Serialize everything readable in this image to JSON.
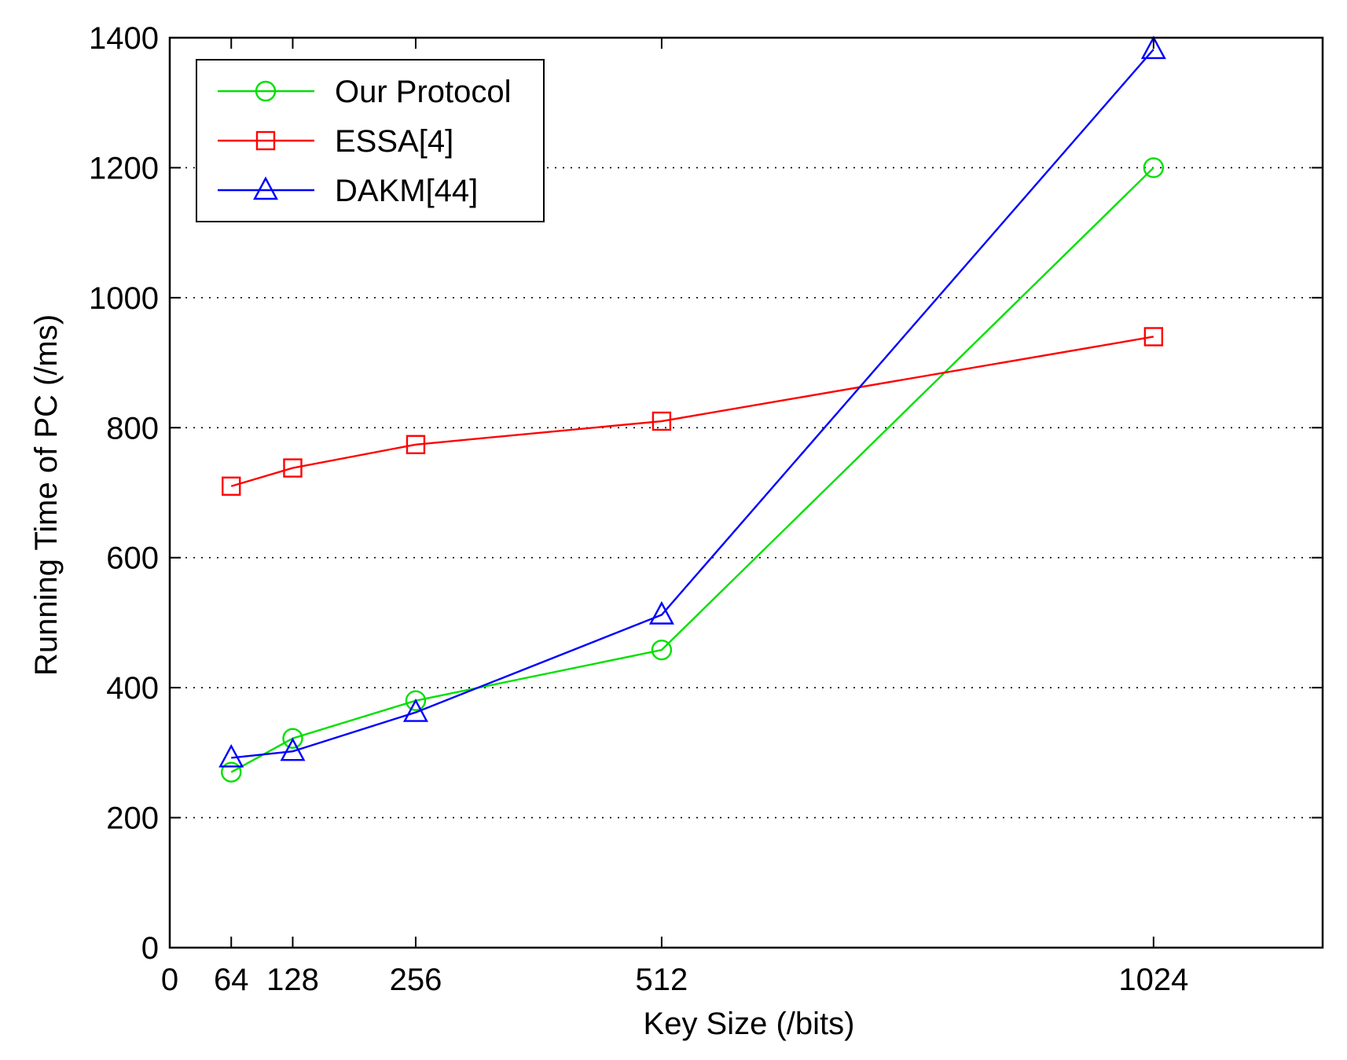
{
  "chart_data": {
    "type": "line",
    "title": "",
    "xlabel": "Key Size (/bits)",
    "ylabel": "Running Time of PC (/ms)",
    "xlim": [
      0,
      1200
    ],
    "ylim": [
      0,
      1400
    ],
    "x_ticks": [
      0,
      64,
      128,
      256,
      512,
      1024
    ],
    "x_tick_labels": [
      "0",
      "64",
      "128",
      "256",
      "512",
      "1024"
    ],
    "y_ticks": [
      0,
      200,
      400,
      600,
      800,
      1000,
      1200,
      1400
    ],
    "y_tick_labels": [
      "0",
      "200",
      "400",
      "600",
      "800",
      "1000",
      "1200",
      "1400"
    ],
    "grid": "y-dotted",
    "legend_position": "top-left",
    "x": [
      64,
      128,
      256,
      512,
      1024
    ],
    "series": [
      {
        "name": "Our Protocol",
        "color": "#00e000",
        "marker": "circle",
        "values": [
          270,
          322,
          380,
          458,
          1200
        ]
      },
      {
        "name": "ESSA[4]",
        "color": "#ff0000",
        "marker": "square",
        "values": [
          710,
          738,
          774,
          810,
          940
        ]
      },
      {
        "name": "DAKM[44]",
        "color": "#0000ff",
        "marker": "triangle",
        "values": [
          292,
          302,
          362,
          512,
          1382
        ]
      }
    ]
  }
}
